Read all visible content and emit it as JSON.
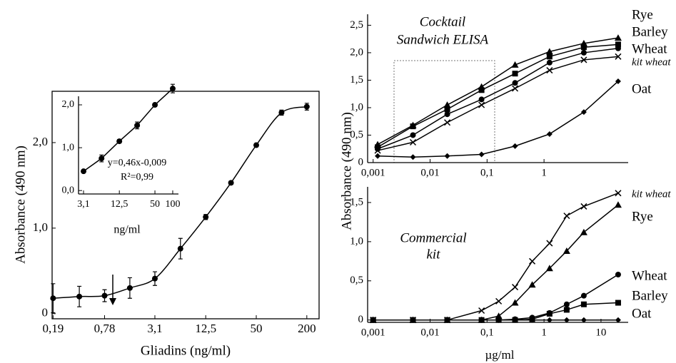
{
  "chart_data": [
    {
      "type": "line",
      "x_label": "Gliadins (ng/ml)",
      "y_label": "Absorbance (490 nm)",
      "xscale": "log",
      "x": [
        0.19,
        0.39,
        0.78,
        1.56,
        3.1,
        6.25,
        12.5,
        25,
        50,
        100,
        200
      ],
      "values": [
        0.18,
        0.2,
        0.21,
        0.3,
        0.41,
        0.76,
        1.13,
        1.53,
        1.97,
        2.35,
        2.42
      ],
      "errors": [
        0.17,
        0.12,
        0.07,
        0.12,
        0.08,
        0.12,
        0.03,
        0.02,
        0.02,
        0.03,
        0.04
      ],
      "color": "#000000",
      "marker": "circle",
      "xlim": [
        0.185,
        280
      ],
      "ylim": [
        -0.06,
        2.6
      ],
      "xticks": [
        {
          "value": 0.19,
          "label": "0,19"
        },
        {
          "value": 0.78,
          "label": "0,78"
        },
        {
          "value": 3.1,
          "label": "3,1"
        },
        {
          "value": 12.5,
          "label": "12,5"
        },
        50,
        200
      ],
      "yticks": [
        0,
        {
          "value": 1,
          "label": "1,0"
        },
        {
          "value": 2,
          "label": "2,0"
        }
      ]
    },
    {
      "type": "line",
      "x_label": "ng/ml",
      "xscale": "log",
      "x": [
        3.1,
        6.25,
        12.5,
        25,
        50,
        100
      ],
      "values": [
        0.45,
        0.75,
        1.15,
        1.52,
        2.0,
        2.38
      ],
      "errors": [
        0.03,
        0.08,
        0.04,
        0.08,
        0.04,
        0.1
      ],
      "color": "#000000",
      "marker": "square",
      "annotations": [
        "y=0,46x-0,009",
        "R²=0,99"
      ],
      "xlim": [
        2.55,
        125
      ],
      "ylim": [
        -0.08,
        2.2
      ],
      "xticks": [
        {
          "value": 3.1,
          "label": "3,1"
        },
        {
          "value": 12.5,
          "label": "12,5"
        },
        50,
        100
      ],
      "yticks": [
        {
          "value": 0,
          "label": "0,0"
        },
        {
          "value": 1,
          "label": "1,0"
        },
        {
          "value": 2,
          "label": "2,0"
        }
      ]
    },
    {
      "type": "line",
      "y_label": "Absorbance (490 nm)",
      "xscale": "log",
      "annotations": [
        "Cocktail",
        "Sandwich  ELISA"
      ],
      "x": [
        0.0012,
        0.005,
        0.02,
        0.08,
        0.31,
        1.25,
        5,
        20
      ],
      "series": [
        {
          "name": "Rye",
          "color": "#000000",
          "marker": "triangle",
          "values": [
            0.33,
            0.68,
            1.05,
            1.38,
            1.78,
            2.02,
            2.17,
            2.27
          ]
        },
        {
          "name": "Barley",
          "color": "#000000",
          "marker": "square",
          "values": [
            0.28,
            0.66,
            0.97,
            1.32,
            1.62,
            1.93,
            2.1,
            2.15
          ]
        },
        {
          "name": "Wheat",
          "color": "#000000",
          "marker": "circle",
          "values": [
            0.25,
            0.5,
            0.88,
            1.15,
            1.45,
            1.82,
            2.0,
            2.08
          ]
        },
        {
          "name": "kit wheat",
          "color": "#000000",
          "marker": "x",
          "values": [
            0.22,
            0.37,
            0.73,
            1.05,
            1.35,
            1.68,
            1.87,
            1.93
          ]
        },
        {
          "name": "Oat",
          "color": "#000000",
          "marker": "diamond",
          "values": [
            0.12,
            0.1,
            0.12,
            0.15,
            0.3,
            0.52,
            0.92,
            1.48
          ]
        }
      ],
      "xlim": [
        0.0008,
        30
      ],
      "ylim": [
        0,
        2.7
      ],
      "xticks": [
        {
          "value": 0.001,
          "label": "0,001"
        },
        {
          "value": 0.01,
          "label": "0,01"
        },
        {
          "value": 0.1,
          "label": "0,1"
        },
        1
      ],
      "yticks": [
        0,
        {
          "value": 0.5,
          "label": "0,5"
        },
        {
          "value": 1,
          "label": "1,0"
        },
        {
          "value": 1.5,
          "label": "1,5"
        },
        {
          "value": 2,
          "label": "2,0"
        },
        {
          "value": 2.5,
          "label": "2,5"
        }
      ]
    },
    {
      "type": "line",
      "x_label": "µg/ml",
      "xscale": "log",
      "annotations": [
        "Commercial",
        "kit"
      ],
      "x": [
        0.001,
        0.005,
        0.02,
        0.08,
        0.16,
        0.31,
        0.62,
        1.25,
        2.5,
        5,
        20
      ],
      "series": [
        {
          "name": "kit wheat",
          "color": "#000000",
          "marker": "x",
          "values": [
            0,
            0,
            0,
            0.12,
            0.24,
            0.42,
            0.75,
            0.98,
            1.33,
            1.45,
            1.62
          ]
        },
        {
          "name": "Rye",
          "color": "#000000",
          "marker": "triangle",
          "values": [
            0,
            0,
            0,
            0,
            0.05,
            0.22,
            0.45,
            0.66,
            0.88,
            1.12,
            1.47
          ]
        },
        {
          "name": "Wheat",
          "color": "#000000",
          "marker": "circle",
          "values": [
            0,
            0,
            0,
            0,
            0,
            0.01,
            0.03,
            0.09,
            0.2,
            0.31,
            0.58
          ]
        },
        {
          "name": "Barley",
          "color": "#000000",
          "marker": "square",
          "values": [
            0,
            0,
            0,
            0,
            0,
            0,
            0.01,
            0.08,
            0.13,
            0.2,
            0.22
          ]
        },
        {
          "name": "Oat",
          "color": "#000000",
          "marker": "diamond",
          "values": [
            0,
            0,
            0,
            0,
            0,
            0,
            0,
            0,
            0,
            0,
            0
          ]
        }
      ],
      "xlim": [
        0.0008,
        30
      ],
      "ylim": [
        -0.03,
        1.7
      ],
      "xticks": [
        {
          "value": 0.001,
          "label": "0,001"
        },
        {
          "value": 0.01,
          "label": "0,01"
        },
        {
          "value": 0.1,
          "label": "0,1"
        },
        1,
        10
      ],
      "yticks": [
        0,
        {
          "value": 0.5,
          "label": "0,5"
        },
        {
          "value": 1,
          "label": "1,0"
        },
        {
          "value": 1.5,
          "label": "1,5"
        }
      ]
    }
  ]
}
